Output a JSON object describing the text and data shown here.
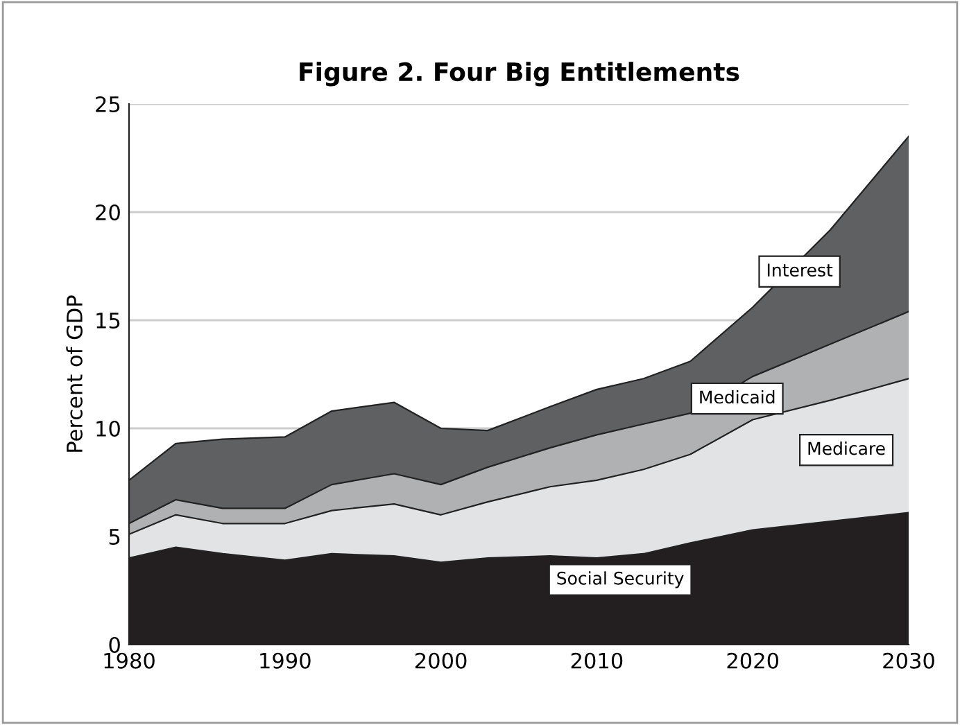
{
  "chart_data": {
    "type": "area",
    "stacked": true,
    "title": "Figure 2. Four Big Entitlements",
    "ylabel": "Percent of GDP",
    "x": [
      1980,
      1983,
      1986,
      1990,
      1993,
      1997,
      2000,
      2003,
      2007,
      2010,
      2013,
      2016,
      2020,
      2025,
      2030
    ],
    "series": [
      {
        "name": "Social Security",
        "color": "#231f20",
        "values": [
          4.0,
          4.5,
          4.2,
          3.9,
          4.2,
          4.1,
          3.8,
          4.0,
          4.1,
          4.0,
          4.2,
          4.7,
          5.3,
          5.7,
          6.1
        ]
      },
      {
        "name": "Medicare",
        "color": "#e2e3e5",
        "values": [
          1.1,
          1.5,
          1.4,
          1.7,
          2.0,
          2.4,
          2.2,
          2.6,
          3.2,
          3.6,
          3.9,
          4.1,
          5.1,
          5.6,
          6.2
        ]
      },
      {
        "name": "Medicaid",
        "color": "#b0b1b3",
        "values": [
          0.5,
          0.7,
          0.7,
          0.7,
          1.2,
          1.4,
          1.4,
          1.6,
          1.8,
          2.1,
          2.1,
          1.9,
          2.0,
          2.6,
          3.1
        ]
      },
      {
        "name": "Interest",
        "color": "#5e6062",
        "values": [
          2.0,
          2.6,
          3.2,
          3.3,
          3.4,
          3.3,
          2.6,
          1.7,
          1.9,
          2.1,
          2.1,
          2.4,
          3.2,
          5.3,
          8.1
        ]
      }
    ],
    "xlim": [
      1980,
      2030
    ],
    "xticks": [
      1980,
      1990,
      2000,
      2010,
      2020,
      2030
    ],
    "ylim": [
      0,
      25
    ],
    "yticks": [
      0,
      5,
      10,
      15,
      20,
      25
    ],
    "grid": "y",
    "legend": false
  }
}
